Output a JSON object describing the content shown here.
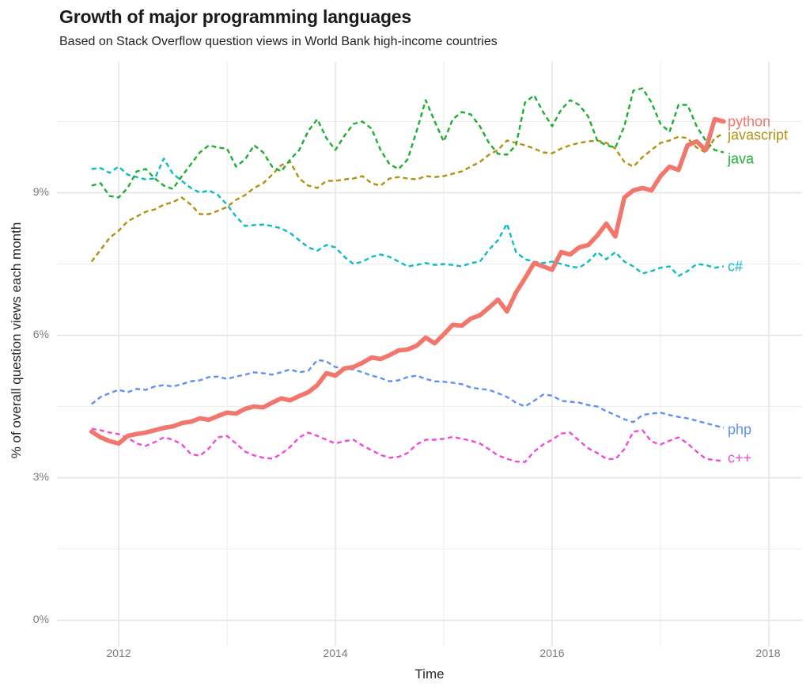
{
  "chart_data": {
    "type": "line",
    "title": "Growth of major programming languages",
    "subtitle": "Based on Stack Overflow question views in World Bank high-income countries",
    "xlabel": "Time",
    "ylabel": "% of overall question views each month",
    "x_unit": "decimal_year",
    "x_start": 2011.75,
    "x_step": 0.0833333,
    "xlim": [
      2011.6,
      2018.3
    ],
    "ylim": [
      0,
      11.7
    ],
    "grid": true,
    "legend_position": "labels-at-line-ends",
    "x_ticks": {
      "values": [
        2012,
        2014,
        2016,
        2018
      ],
      "labels": [
        "2012",
        "2014",
        "2016",
        "2018"
      ]
    },
    "y_ticks": {
      "values": [
        0,
        3,
        6,
        9
      ],
      "labels": [
        "0%",
        "3%",
        "6%",
        "9%"
      ]
    },
    "x_minor_gridlines": [
      2013,
      2015,
      2017
    ],
    "y_minor_gridlines": [
      1.5,
      4.5,
      7.5,
      10.5
    ],
    "series": [
      {
        "name": "python",
        "color": "#F3766D",
        "style": "solid",
        "label_dy": 0,
        "values": [
          3.97,
          3.85,
          3.77,
          3.72,
          3.88,
          3.92,
          3.95,
          4.0,
          4.05,
          4.08,
          4.15,
          4.18,
          4.25,
          4.22,
          4.3,
          4.37,
          4.35,
          4.45,
          4.5,
          4.48,
          4.58,
          4.67,
          4.63,
          4.72,
          4.8,
          4.95,
          5.2,
          5.15,
          5.3,
          5.33,
          5.42,
          5.53,
          5.5,
          5.58,
          5.68,
          5.7,
          5.78,
          5.95,
          5.83,
          6.02,
          6.22,
          6.2,
          6.35,
          6.42,
          6.58,
          6.75,
          6.5,
          6.9,
          7.2,
          7.52,
          7.45,
          7.38,
          7.75,
          7.7,
          7.85,
          7.9,
          8.1,
          8.35,
          8.08,
          8.9,
          9.05,
          9.1,
          9.05,
          9.35,
          9.55,
          9.48,
          10.0,
          10.08,
          9.9,
          10.55,
          10.5
        ]
      },
      {
        "name": "javascript",
        "color": "#B29010",
        "style": "dashed",
        "label_dy": 2,
        "values": [
          7.55,
          7.8,
          8.05,
          8.2,
          8.4,
          8.5,
          8.6,
          8.65,
          8.75,
          8.8,
          8.9,
          8.75,
          8.55,
          8.55,
          8.62,
          8.7,
          8.85,
          8.95,
          9.1,
          9.2,
          9.38,
          9.58,
          9.65,
          9.3,
          9.15,
          9.1,
          9.25,
          9.25,
          9.28,
          9.3,
          9.35,
          9.2,
          9.15,
          9.3,
          9.33,
          9.3,
          9.28,
          9.35,
          9.33,
          9.35,
          9.4,
          9.45,
          9.55,
          9.65,
          9.8,
          9.9,
          10.1,
          10.05,
          10.0,
          9.93,
          9.85,
          9.83,
          9.93,
          10.0,
          10.05,
          10.08,
          10.1,
          10.05,
          9.93,
          9.65,
          9.55,
          9.75,
          9.9,
          10.05,
          10.1,
          10.18,
          10.15,
          9.95,
          9.85,
          10.15,
          10.25
        ]
      },
      {
        "name": "java",
        "color": "#1EAF32",
        "style": "dashed",
        "label_dy": 8,
        "values": [
          9.15,
          9.2,
          8.93,
          8.9,
          9.1,
          9.45,
          9.5,
          9.3,
          9.15,
          9.08,
          9.35,
          9.6,
          9.85,
          10.0,
          9.95,
          9.93,
          9.55,
          9.7,
          10.0,
          9.85,
          9.55,
          9.45,
          9.7,
          9.9,
          10.3,
          10.55,
          10.15,
          9.9,
          10.2,
          10.45,
          10.5,
          10.35,
          9.9,
          9.6,
          9.5,
          9.7,
          10.3,
          10.95,
          10.5,
          10.08,
          10.55,
          10.7,
          10.65,
          10.4,
          10.05,
          9.82,
          9.8,
          10.0,
          10.9,
          11.05,
          10.7,
          10.4,
          10.75,
          10.95,
          10.85,
          10.6,
          10.1,
          10.0,
          9.95,
          10.4,
          11.15,
          11.2,
          10.9,
          10.45,
          10.28,
          10.85,
          10.85,
          10.4,
          10.1,
          9.9,
          9.85
        ]
      },
      {
        "name": "c#",
        "color": "#0ABCC4",
        "style": "dashed",
        "label_dy": 0,
        "values": [
          9.5,
          9.52,
          9.42,
          9.55,
          9.38,
          9.33,
          9.28,
          9.3,
          9.72,
          9.4,
          9.25,
          9.1,
          9.0,
          9.05,
          8.95,
          8.75,
          8.5,
          8.3,
          8.32,
          8.33,
          8.3,
          8.25,
          8.15,
          8.0,
          7.85,
          7.78,
          7.9,
          7.85,
          7.65,
          7.5,
          7.55,
          7.65,
          7.7,
          7.65,
          7.55,
          7.45,
          7.48,
          7.52,
          7.48,
          7.5,
          7.48,
          7.45,
          7.52,
          7.55,
          7.8,
          8.0,
          8.35,
          7.75,
          7.6,
          7.55,
          7.52,
          7.55,
          7.5,
          7.45,
          7.42,
          7.55,
          7.75,
          7.6,
          7.75,
          7.55,
          7.45,
          7.3,
          7.35,
          7.42,
          7.45,
          7.25,
          7.35,
          7.5,
          7.48,
          7.42,
          7.45
        ]
      },
      {
        "name": "php",
        "color": "#5F8FF7",
        "style": "dashed",
        "label_dy": 2,
        "values": [
          4.55,
          4.7,
          4.78,
          4.85,
          4.8,
          4.87,
          4.85,
          4.92,
          4.95,
          4.92,
          4.97,
          5.03,
          5.05,
          5.12,
          5.13,
          5.08,
          5.13,
          5.17,
          5.22,
          5.2,
          5.17,
          5.22,
          5.28,
          5.22,
          5.25,
          5.48,
          5.45,
          5.33,
          5.3,
          5.28,
          5.22,
          5.15,
          5.1,
          5.03,
          5.05,
          5.12,
          5.15,
          5.08,
          5.03,
          5.02,
          5.0,
          4.97,
          4.9,
          4.87,
          4.85,
          4.78,
          4.7,
          4.58,
          4.5,
          4.62,
          4.75,
          4.73,
          4.62,
          4.6,
          4.58,
          4.53,
          4.5,
          4.4,
          4.32,
          4.23,
          4.17,
          4.32,
          4.35,
          4.37,
          4.32,
          4.28,
          4.25,
          4.2,
          4.15,
          4.1,
          4.05
        ]
      },
      {
        "name": "c++",
        "color": "#F04BD8",
        "style": "dashed",
        "label_dy": -4,
        "values": [
          4.03,
          4.0,
          3.95,
          3.92,
          3.84,
          3.72,
          3.67,
          3.75,
          3.85,
          3.8,
          3.7,
          3.5,
          3.46,
          3.62,
          3.85,
          3.88,
          3.72,
          3.55,
          3.47,
          3.42,
          3.4,
          3.5,
          3.65,
          3.85,
          3.95,
          3.88,
          3.8,
          3.72,
          3.77,
          3.8,
          3.68,
          3.58,
          3.48,
          3.42,
          3.44,
          3.52,
          3.7,
          3.8,
          3.8,
          3.82,
          3.86,
          3.82,
          3.78,
          3.72,
          3.6,
          3.47,
          3.4,
          3.34,
          3.33,
          3.55,
          3.7,
          3.8,
          3.93,
          3.95,
          3.78,
          3.62,
          3.52,
          3.4,
          3.39,
          3.6,
          3.97,
          4.0,
          3.76,
          3.7,
          3.78,
          3.85,
          3.72,
          3.55,
          3.4,
          3.37,
          3.35
        ]
      }
    ]
  }
}
